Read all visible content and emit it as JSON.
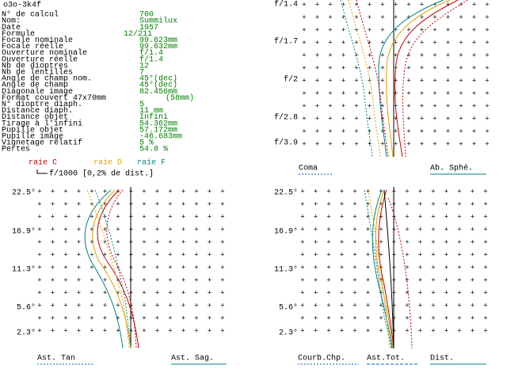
{
  "header": {
    "title": "o3o-3k4f"
  },
  "parameters": [
    {
      "label": "N° de calcul",
      "value": "700"
    },
    {
      "label": "Nom:",
      "value": "Summilux"
    },
    {
      "label": "Date",
      "value": "1957"
    },
    {
      "label": "Formule",
      "value": "12/211"
    },
    {
      "label": "Focale nominale",
      "value": "99.623mm"
    },
    {
      "label": "Focale réelle",
      "value": "99.632mm"
    },
    {
      "label": "Ouverture nominale",
      "value": "f/1.4"
    },
    {
      "label": "Ouverture réelle",
      "value": "f/1.4"
    },
    {
      "label": "Nb de dioptres",
      "value": "12"
    },
    {
      "label": "Nb de lentilles",
      "value": "7"
    },
    {
      "label": "Angle de champ nom.",
      "value": "45°(dec)"
    },
    {
      "label": "Angle de champ",
      "value": "45°(dec)"
    },
    {
      "label": "Diagonale image",
      "value": "82.456mm"
    },
    {
      "label": "Format couvert 47x70mm",
      "value": "(58mm)"
    },
    {
      "label": "N° dioptre diaph.",
      "value": "5"
    },
    {
      "label": "Distance diaph.",
      "value": "11    mm"
    },
    {
      "label": "Distance objet",
      "value": "Infini"
    },
    {
      "label": "Tirage à l'infini",
      "value": "54.362mm"
    },
    {
      "label": "Pupille objet",
      "value": "57.172mm"
    },
    {
      "label": "Pupille image",
      "value": "-46.683mm"
    },
    {
      "label": "Vignetage relatif",
      "value": "5 %"
    },
    {
      "label": "Pertes",
      "value": "54.8 %"
    }
  ],
  "legend": {
    "lines": [
      "raie C",
      "raie D",
      "raie F"
    ],
    "scale": "f/1000 [0,2% de dist.]"
  },
  "plots": [
    {
      "name": "aperture",
      "ylabels": [
        "f/1.4",
        "f/1.7",
        "f/2",
        "f/2.8",
        "f/3.9"
      ],
      "captions": [
        "Coma",
        "Ab. Sphé."
      ]
    },
    {
      "name": "astig",
      "ylabels": [
        "22.5°",
        "16.9°",
        "11.3°",
        "5.6°",
        "2.3°"
      ],
      "captions": [
        "Ast. Tan",
        "Ast. Sag."
      ]
    },
    {
      "name": "field",
      "ylabels": [
        "22.5°",
        "16.9°",
        "11.3°",
        "5.6°",
        "2.3°"
      ],
      "captions": [
        "Courb.Chp.",
        "Ast.Tot.",
        "Dist."
      ]
    }
  ]
}
